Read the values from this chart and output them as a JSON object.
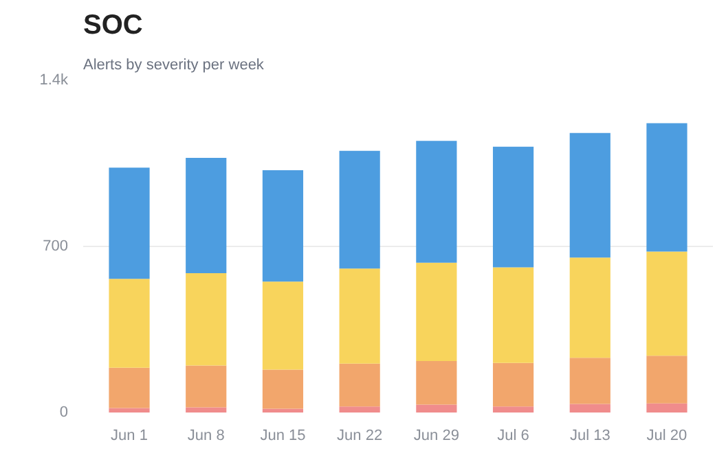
{
  "chart_data": {
    "type": "bar",
    "title": "SOC",
    "subtitle": "Alerts by severity per week",
    "stacked": true,
    "categories": [
      "Jun 1",
      "Jun 8",
      "Jun 15",
      "Jun 22",
      "Jun 29",
      "Jul 6",
      "Jul 13",
      "Jul 20"
    ],
    "series": [
      {
        "color": "#f08c8c",
        "values": [
          19,
          22,
          16,
          25,
          33,
          25,
          36,
          38
        ]
      },
      {
        "color": "#f2a66c",
        "values": [
          170,
          176,
          165,
          181,
          184,
          184,
          195,
          201
        ]
      },
      {
        "color": "#f8d45c",
        "values": [
          374,
          389,
          371,
          401,
          414,
          403,
          422,
          439
        ]
      },
      {
        "color": "#4d9de0",
        "values": [
          469,
          486,
          469,
          496,
          514,
          508,
          525,
          541
        ]
      }
    ],
    "ylim": [
      0,
      1400
    ],
    "yticks": [
      0,
      700,
      {
        "value": 1400,
        "label": "1.4k"
      }
    ],
    "grid": "y"
  }
}
